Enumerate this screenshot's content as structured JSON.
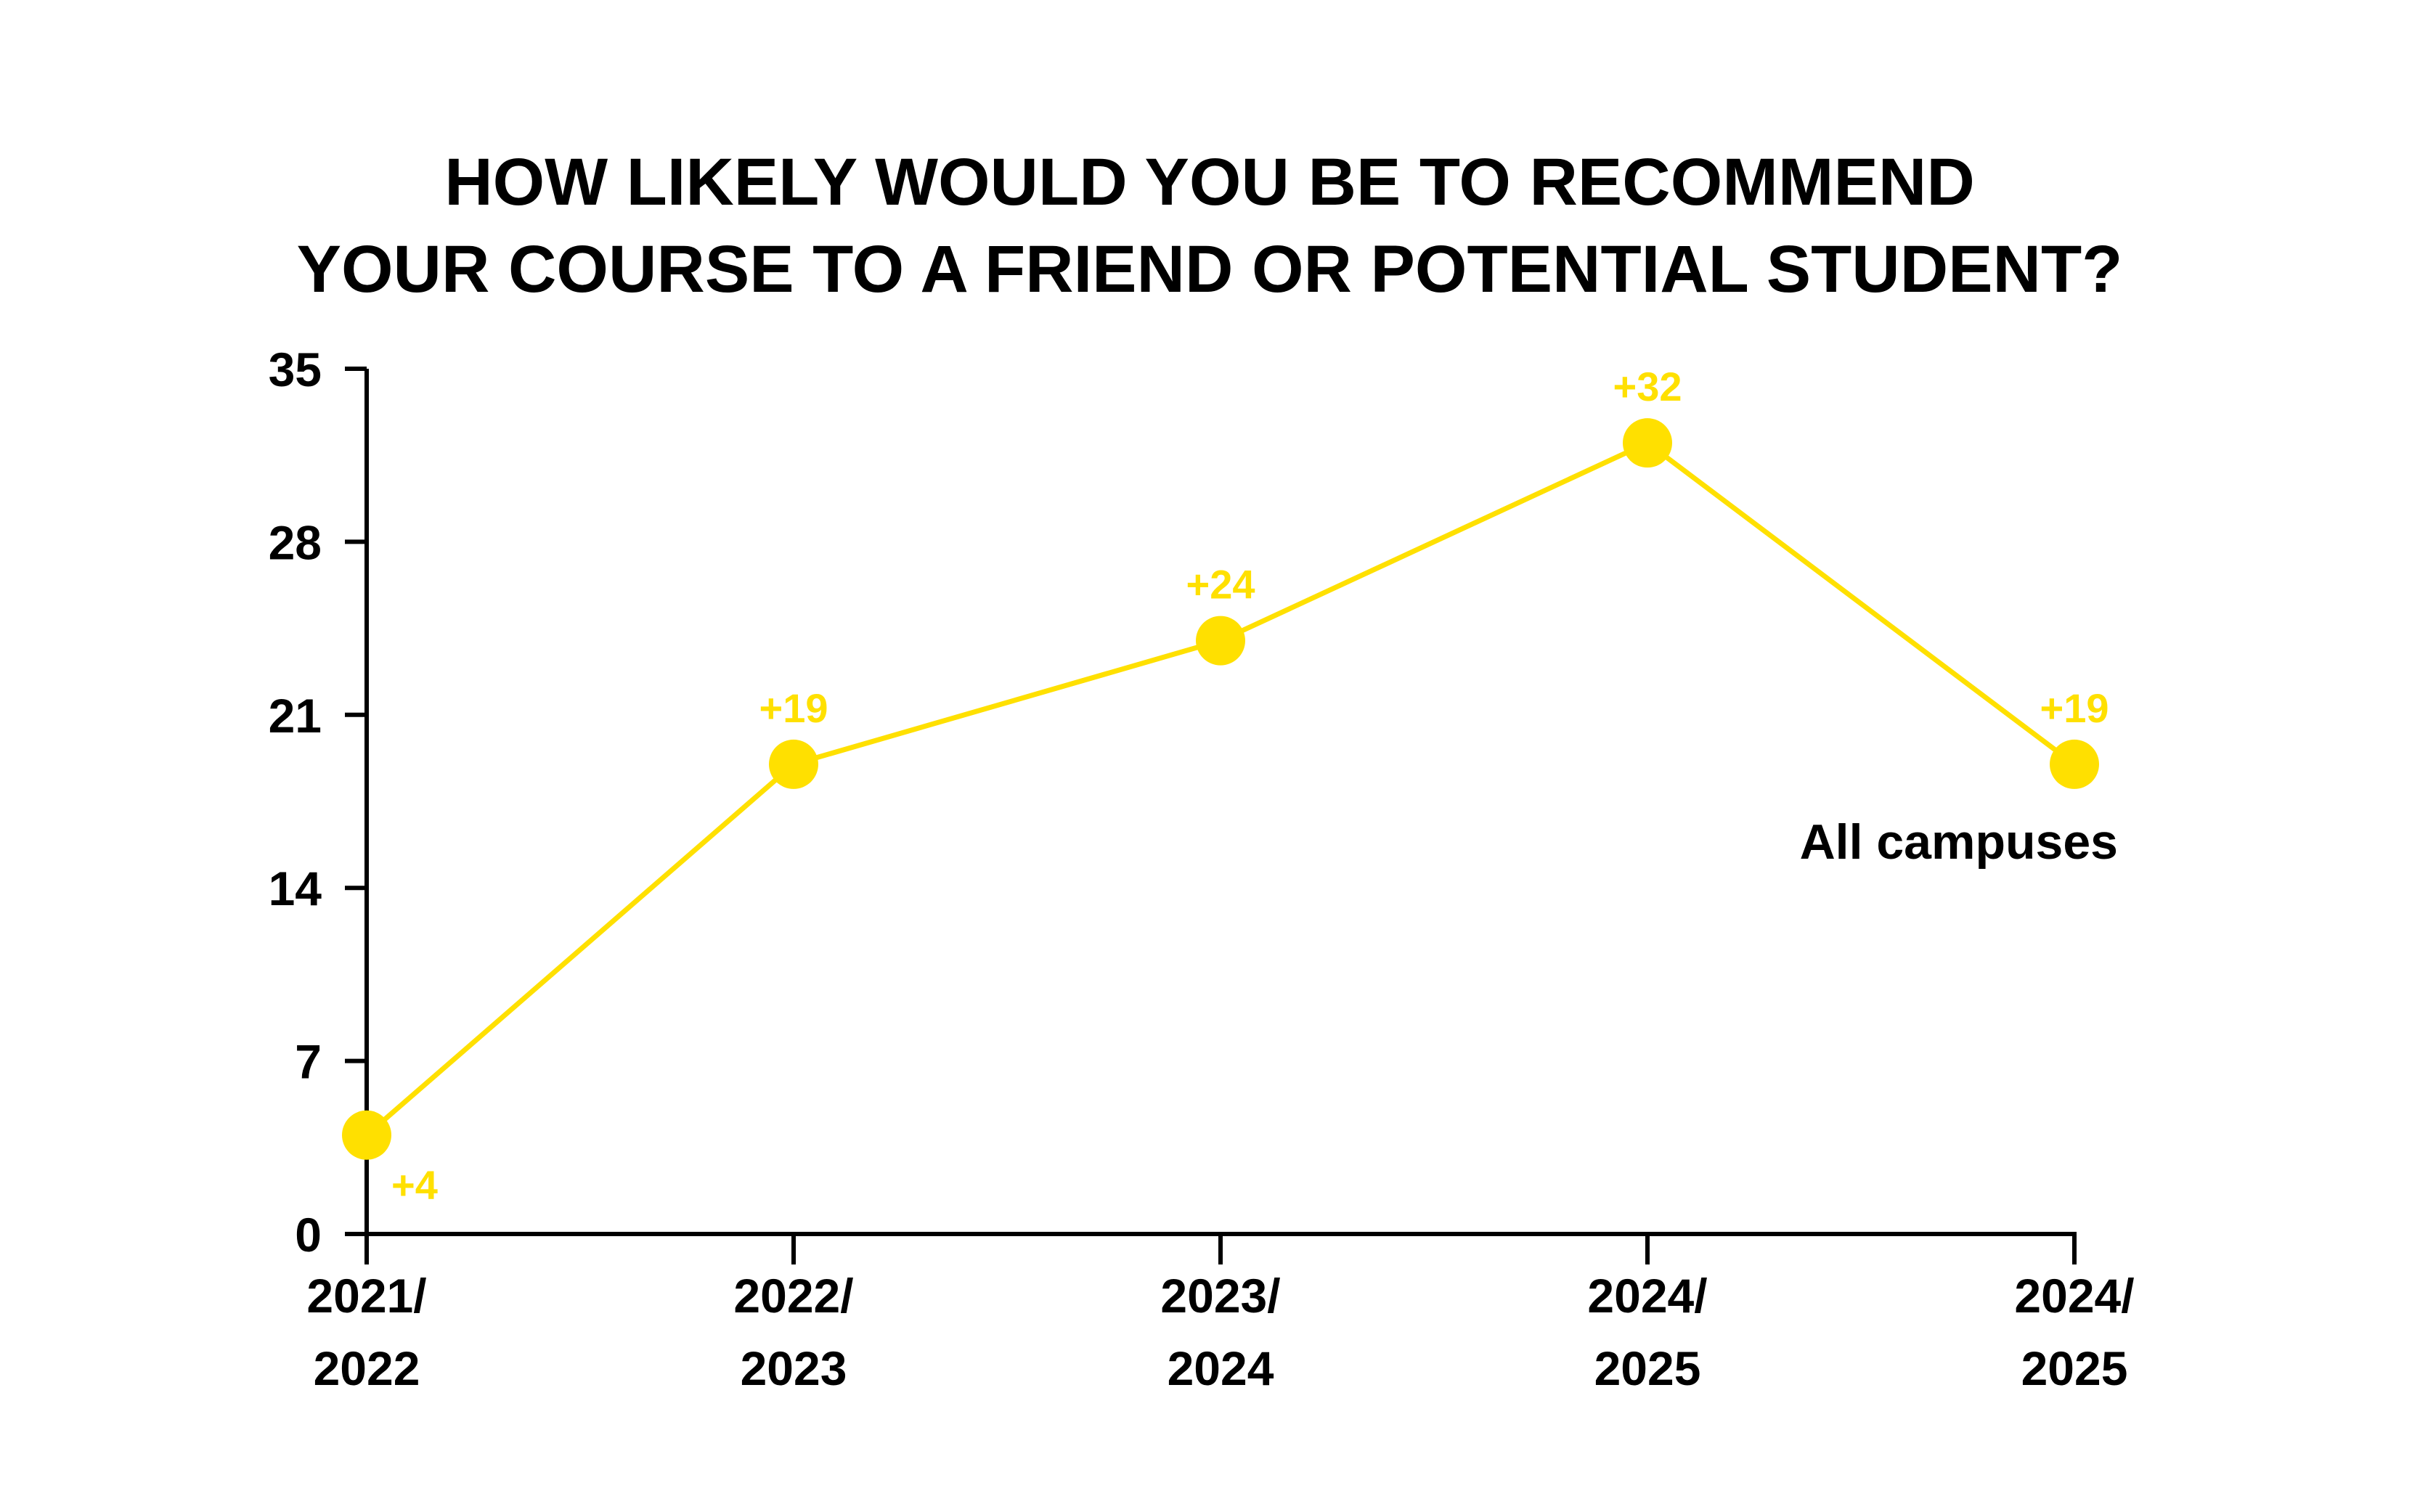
{
  "chart_data": {
    "type": "line",
    "title_lines": [
      "HOW LIKELY WOULD YOU BE TO RECOMMEND",
      "YOUR COURSE TO A FRIEND OR POTENTIAL STUDENT?"
    ],
    "categories": [
      [
        "2021/",
        "2022"
      ],
      [
        "2022/",
        "2023"
      ],
      [
        "2023/",
        "2024"
      ],
      [
        "2024/",
        "2025"
      ],
      [
        "2024/",
        "2025"
      ]
    ],
    "series": [
      {
        "name": "All campuses",
        "values": [
          4,
          19,
          24,
          32,
          19
        ],
        "data_labels": [
          "+4",
          "+19",
          "+24",
          "+32",
          "+19"
        ],
        "color": "#FFE000"
      }
    ],
    "yticks": [
      0,
      7,
      14,
      21,
      28,
      35
    ],
    "ylim": [
      0,
      35
    ],
    "grid": false,
    "legend": "inline-right"
  }
}
